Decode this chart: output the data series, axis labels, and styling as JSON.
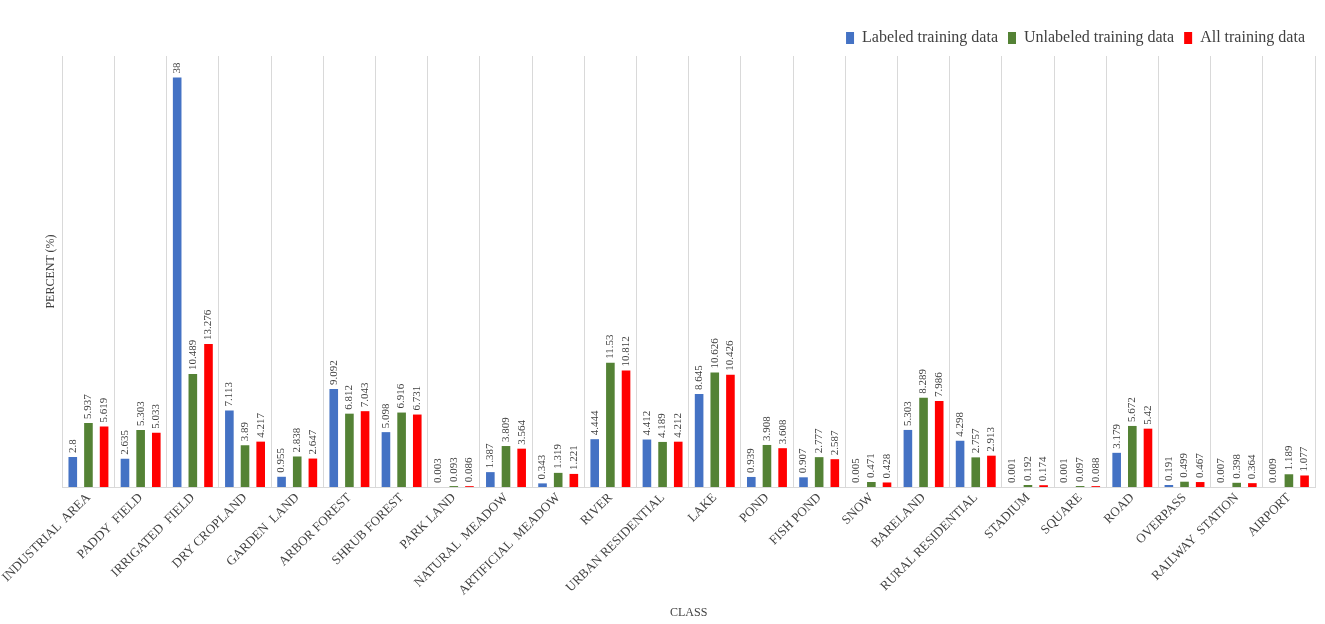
{
  "chart_data": {
    "type": "bar",
    "xlabel": "CLASS",
    "ylabel": "PERCENT (%)",
    "categories": [
      "INDUSTRIAL  AREA",
      "PADDY  FIELD",
      "IRRIGATED  FIELD",
      "DRY CROPLAND",
      "GARDEN  LAND",
      "ARBOR FOREST",
      "SHRUB FOREST",
      "PARK LAND",
      "NATURAL  MEADOW",
      "ARTIFICIAL  MEADOW",
      "RIVER",
      "URBAN RESIDENTIAL",
      "LAKE",
      "POND",
      "FISH POND",
      "SNOW",
      "BARELAND",
      "RURAL RESIDENTIAL",
      "STADIUM",
      "SQUARE",
      "ROAD",
      "OVERPASS",
      "RAILWAY  STATION",
      "AIRPORT"
    ],
    "series": [
      {
        "name": "Labeled training data",
        "color": "#4472c4",
        "values": [
          2.8,
          2.635,
          38,
          7.113,
          0.955,
          9.092,
          5.098,
          0.003,
          1.387,
          0.343,
          4.444,
          4.412,
          8.645,
          0.939,
          0.907,
          0.005,
          5.303,
          4.298,
          0.001,
          0.001,
          3.179,
          0.191,
          0.007,
          0.009
        ]
      },
      {
        "name": "Unlabeled training data",
        "color": "#548235",
        "values": [
          5.937,
          5.303,
          10.489,
          3.89,
          2.838,
          6.812,
          6.916,
          0.093,
          3.809,
          1.319,
          11.53,
          4.189,
          10.626,
          3.908,
          2.777,
          0.471,
          8.289,
          2.757,
          0.192,
          0.097,
          5.672,
          0.499,
          0.398,
          1.189
        ]
      },
      {
        "name": "All training data",
        "color": "#ff0000",
        "values": [
          5.619,
          5.033,
          13.276,
          4.217,
          2.647,
          7.043,
          6.731,
          0.086,
          3.564,
          1.221,
          10.812,
          4.212,
          10.426,
          3.608,
          2.587,
          0.428,
          7.986,
          2.913,
          0.174,
          0.088,
          5.42,
          0.467,
          0.364,
          1.077
        ]
      }
    ],
    "data_labels": true,
    "grid": "x",
    "legend": "top right",
    "tick_labels": "x"
  }
}
